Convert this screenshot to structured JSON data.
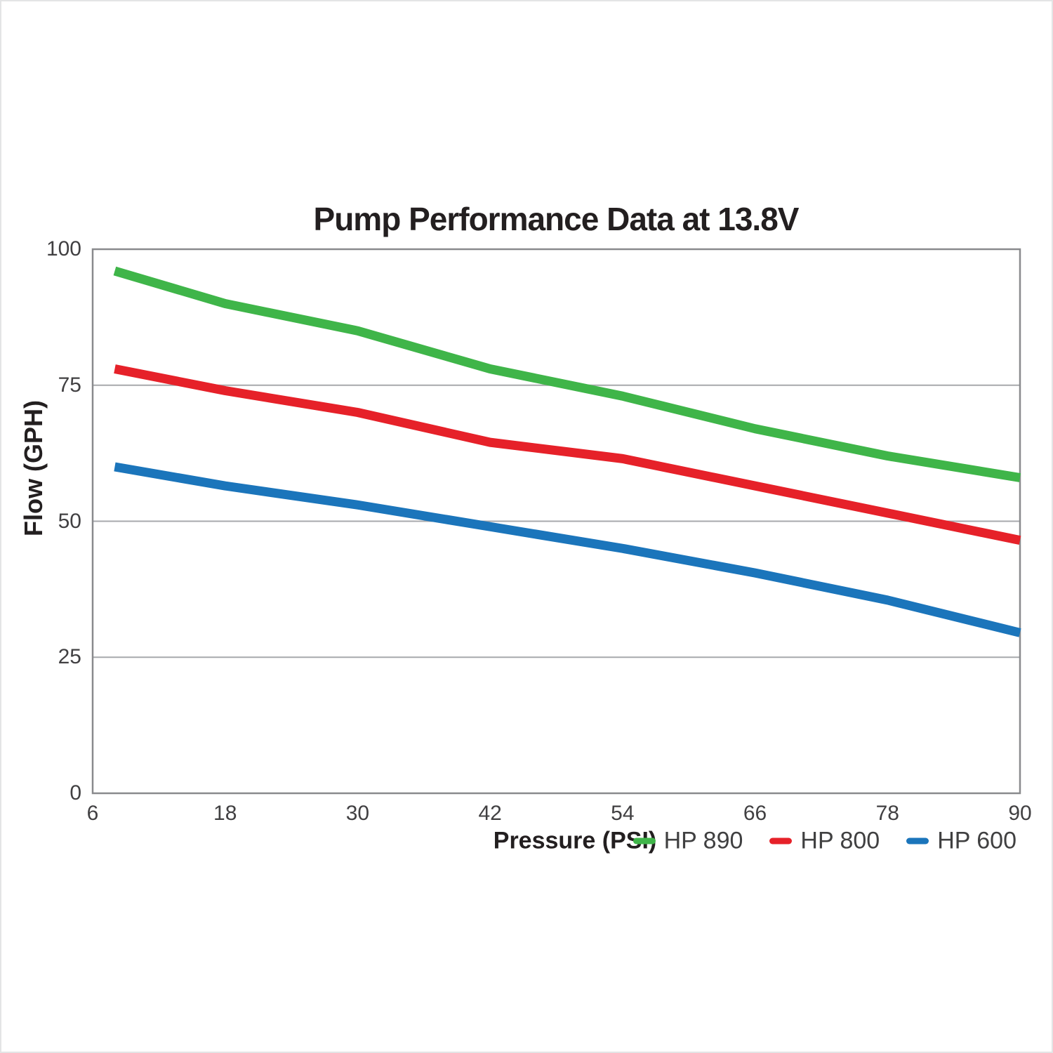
{
  "page": {
    "background": "#ffffff",
    "frame_color": "#e3e4e5"
  },
  "colors": {
    "gridline": "#a7a9ac",
    "plot_border": "#898a8d",
    "title_text": "#231f20",
    "tick_text": "#414042",
    "legend_text": "#404041"
  },
  "chart_data": {
    "type": "line",
    "title": "Pump Performance Data at 13.8V",
    "xlabel": "Pressure (PSI)",
    "ylabel": "Flow (GPH)",
    "xlim": [
      6,
      90
    ],
    "ylim": [
      0,
      100
    ],
    "xticks": [
      6,
      18,
      30,
      42,
      54,
      66,
      78,
      90
    ],
    "yticks": [
      0,
      25,
      50,
      75,
      100
    ],
    "grid": "horizontal",
    "legend_position": "bottom-right",
    "line_width": 13,
    "x": [
      8,
      18,
      30,
      42,
      54,
      66,
      78,
      90
    ],
    "series": [
      {
        "name": "HP 890",
        "color": "#3fb549",
        "values": [
          96,
          90,
          85,
          78,
          73,
          67,
          62,
          58
        ]
      },
      {
        "name": "HP 800",
        "color": "#e62129",
        "values": [
          78,
          74,
          70,
          64.5,
          61.5,
          56.5,
          51.5,
          46.5
        ]
      },
      {
        "name": "HP 600",
        "color": "#1b75bb",
        "values": [
          60,
          56.5,
          53,
          49,
          45,
          40.5,
          35.5,
          29.5
        ]
      }
    ]
  }
}
